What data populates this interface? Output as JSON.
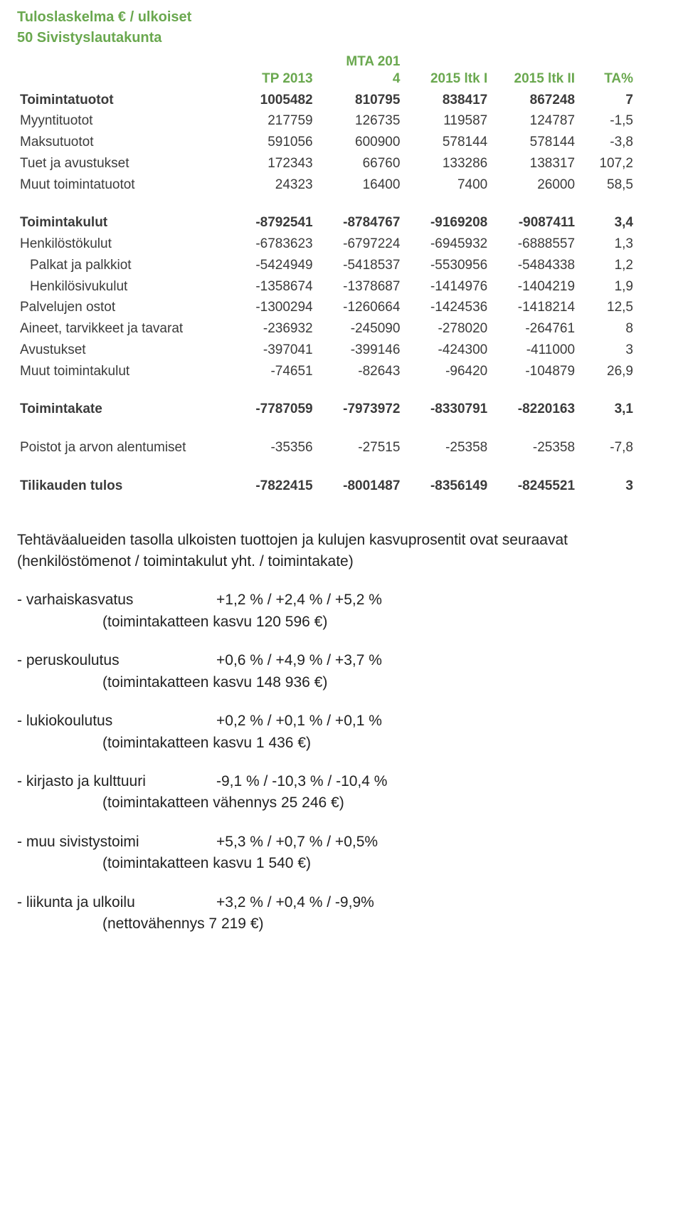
{
  "header": {
    "title1": "Tuloslaskelma € / ulkoiset",
    "title2": "50 Sivistyslautakunta"
  },
  "table": {
    "columns": [
      "",
      "TP 2013",
      "MTA 2014",
      "2015 ltk I",
      "2015 ltk II",
      "TA%"
    ],
    "col_header_color": "#6aa84f",
    "text_color": "#3b3b3b",
    "bold_color": "#222222",
    "rows": [
      {
        "label": "Toimintatuotot",
        "v": [
          "1005482",
          "810795",
          "838417",
          "867248",
          "7"
        ],
        "bold": true
      },
      {
        "label": "Myyntituotot",
        "v": [
          "217759",
          "126735",
          "119587",
          "124787",
          "-1,5"
        ]
      },
      {
        "label": "Maksutuotot",
        "v": [
          "591056",
          "600900",
          "578144",
          "578144",
          "-3,8"
        ]
      },
      {
        "label": "Tuet ja avustukset",
        "v": [
          "172343",
          "66760",
          "133286",
          "138317",
          "107,2"
        ]
      },
      {
        "label": "Muut toimintatuotot",
        "v": [
          "24323",
          "16400",
          "7400",
          "26000",
          "58,5"
        ]
      },
      {
        "spacer": true
      },
      {
        "label": "Toimintakulut",
        "v": [
          "-8792541",
          "-8784767",
          "-9169208",
          "-9087411",
          "3,4"
        ],
        "bold": true
      },
      {
        "label": "Henkilöstökulut",
        "v": [
          "-6783623",
          "-6797224",
          "-6945932",
          "-6888557",
          "1,3"
        ]
      },
      {
        "label": "Palkat ja palkkiot",
        "v": [
          "-5424949",
          "-5418537",
          "-5530956",
          "-5484338",
          "1,2"
        ],
        "indent": 1
      },
      {
        "label": "Henkilösivukulut",
        "v": [
          "-1358674",
          "-1378687",
          "-1414976",
          "-1404219",
          "1,9"
        ],
        "indent": 1
      },
      {
        "label": "Palvelujen ostot",
        "v": [
          "-1300294",
          "-1260664",
          "-1424536",
          "-1418214",
          "12,5"
        ]
      },
      {
        "label": "Aineet, tarvikkeet ja tavarat",
        "v": [
          "-236932",
          "-245090",
          "-278020",
          "-264761",
          "8"
        ]
      },
      {
        "label": "Avustukset",
        "v": [
          "-397041",
          "-399146",
          "-424300",
          "-411000",
          "3"
        ]
      },
      {
        "label": "Muut toimintakulut",
        "v": [
          "-74651",
          "-82643",
          "-96420",
          "-104879",
          "26,9"
        ]
      },
      {
        "spacer": true
      },
      {
        "label": "Toimintakate",
        "v": [
          "-7787059",
          "-7973972",
          "-8330791",
          "-8220163",
          "3,1"
        ],
        "bold": true
      },
      {
        "spacer": true
      },
      {
        "label": "Poistot ja arvon alentumiset",
        "v": [
          "-35356",
          "-27515",
          "-25358",
          "-25358",
          "-7,8"
        ]
      },
      {
        "spacer": true
      },
      {
        "label": "Tilikauden tulos",
        "v": [
          "-7822415",
          "-8001487",
          "-8356149",
          "-8245521",
          "3"
        ],
        "bold": true
      }
    ]
  },
  "prose": {
    "intro": "Tehtäväalueiden tasolla ulkoisten tuottojen ja kulujen kasvuprosentit ovat seuraavat (henkilöstömenot / toimintakulut yht. / toimintakate)",
    "items": [
      {
        "name": "- varhaiskasvatus",
        "pct": "+1,2 % / +2,4 % / +5,2 %",
        "note": "(toimintakatteen kasvu 120 596 €)"
      },
      {
        "name": "- peruskoulutus",
        "pct": "+0,6 % / +4,9 % / +3,7 %",
        "note": "(toimintakatteen kasvu 148 936 €)"
      },
      {
        "name": "- lukiokoulutus",
        "pct": "+0,2 % / +0,1 % / +0,1 %",
        "note": "(toimintakatteen kasvu 1 436 €)"
      },
      {
        "name": "- kirjasto ja kulttuuri",
        "pct": "-9,1 % / -10,3 % / -10,4 %",
        "note": "(toimintakatteen vähennys 25 246 €)"
      },
      {
        "name": "- muu sivistystoimi",
        "pct": "+5,3 % / +0,7 % / +0,5%",
        "note": "(toimintakatteen kasvu 1 540 €)"
      },
      {
        "name": "- liikunta ja ulkoilu",
        "pct": "+3,2 % / +0,4 % / -9,9%",
        "note": "(nettovähennys 7 219 €)"
      }
    ]
  }
}
